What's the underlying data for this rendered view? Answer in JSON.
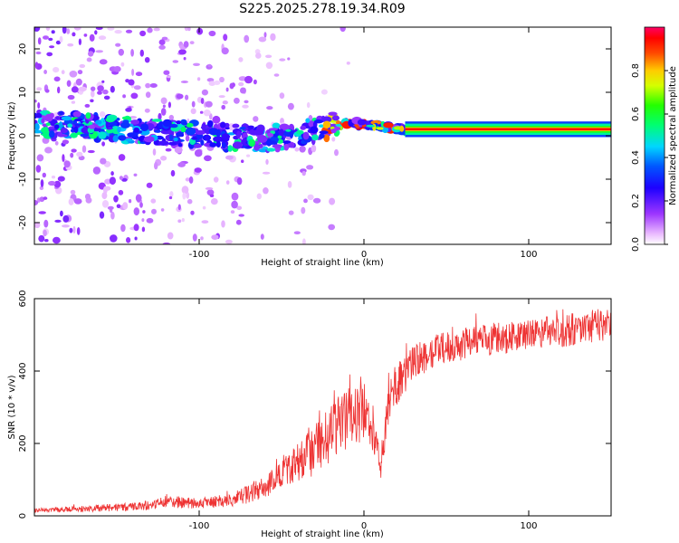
{
  "chart_data": [
    {
      "type": "heatmap",
      "title": "S225.2025.278.19.34.R09",
      "xlabel": "Height of straight line (km)",
      "ylabel": "Frequency (Hz)",
      "xlim": [
        -200,
        150
      ],
      "ylim": [
        -25,
        25
      ],
      "xticks": [
        "-100",
        "0",
        "100"
      ],
      "xtick_values": [
        -100,
        0,
        100
      ],
      "yticks": [
        "-20",
        "-10",
        "0",
        "10",
        "20"
      ],
      "ytick_values": [
        -20,
        -10,
        0,
        10,
        20
      ],
      "colorbar": {
        "label": "Normalized spectral amplitude",
        "range": [
          0,
          1
        ],
        "ticks": [
          "0.0",
          "0.2",
          "0.4",
          "0.6",
          "0.8"
        ],
        "tick_values": [
          0.0,
          0.2,
          0.4,
          0.6,
          0.8
        ],
        "colormap": "magenta-blue-cyan-green-yellow-red"
      },
      "features": {
        "scatter_x_range": [
          -200,
          0
        ],
        "scatter_freq_range": [
          -25,
          25
        ],
        "central_band_start_x": -200,
        "central_band_freq_start": 3,
        "central_band_freq_at_minus60": -1,
        "steady_line_x_range": [
          25,
          150
        ],
        "steady_line_freq": 1.5
      }
    },
    {
      "type": "line",
      "title": "",
      "xlabel": "Height of straight line (km)",
      "ylabel": "SNR (10 * v/v)",
      "xlim": [
        -200,
        150
      ],
      "ylim": [
        0,
        600
      ],
      "xticks": [
        "-100",
        "0",
        "100"
      ],
      "xtick_values": [
        -100,
        0,
        100
      ],
      "yticks": [
        "0",
        "200",
        "400",
        "600"
      ],
      "ytick_values": [
        0,
        200,
        400,
        600
      ],
      "color": "#ee3333",
      "series": [
        {
          "name": "SNR",
          "x": [
            -200,
            -180,
            -160,
            -140,
            -130,
            -120,
            -100,
            -80,
            -70,
            -60,
            -50,
            -40,
            -30,
            -20,
            -15,
            -10,
            -5,
            0,
            5,
            10,
            15,
            20,
            25,
            30,
            40,
            50,
            60,
            80,
            100,
            120,
            140,
            150
          ],
          "y": [
            15,
            18,
            22,
            25,
            30,
            40,
            35,
            45,
            60,
            80,
            110,
            150,
            180,
            230,
            260,
            270,
            280,
            290,
            250,
            130,
            330,
            360,
            390,
            420,
            450,
            465,
            475,
            490,
            500,
            510,
            525,
            530
          ],
          "noise_amplitude": [
            6,
            8,
            10,
            12,
            14,
            18,
            16,
            20,
            25,
            30,
            40,
            55,
            70,
            80,
            85,
            85,
            85,
            80,
            70,
            40,
            70,
            60,
            55,
            50,
            45,
            45,
            45,
            45,
            45,
            45,
            45,
            45
          ]
        }
      ]
    }
  ]
}
